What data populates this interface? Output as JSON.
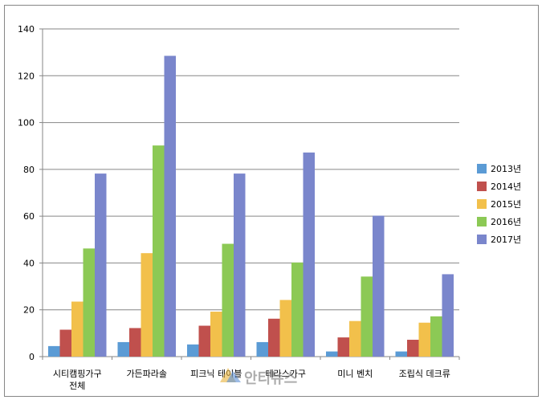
{
  "chart_data": {
    "type": "bar",
    "title": "",
    "xlabel": "",
    "ylabel": "",
    "ylim": [
      0,
      140
    ],
    "yticks": [
      0,
      20,
      40,
      60,
      80,
      100,
      120,
      140
    ],
    "grid": true,
    "legend_position": "right",
    "categories": [
      [
        "시티캠핑가구",
        "전체"
      ],
      [
        "가든파라솔"
      ],
      [
        "피크닉 테이블"
      ],
      [
        "테라스가구"
      ],
      [
        "미니 벤치"
      ],
      [
        "조립식 데크류"
      ]
    ],
    "series": [
      {
        "name": "2013년",
        "color": "#5B9BD5",
        "values": [
          4.5,
          6.2,
          5.2,
          6.2,
          2.2,
          2.2
        ]
      },
      {
        "name": "2014년",
        "color": "#C0504D",
        "values": [
          11.5,
          12.2,
          13.2,
          16.2,
          8.2,
          7.2
        ]
      },
      {
        "name": "2015년",
        "color": "#F2C04B",
        "values": [
          23.5,
          44.2,
          19.2,
          24.2,
          15.2,
          14.5
        ]
      },
      {
        "name": "2016년",
        "color": "#8CC955",
        "values": [
          46.2,
          90.2,
          48.2,
          40.2,
          34.2,
          17.2
        ]
      },
      {
        "name": "2017년",
        "color": "#7A86CC",
        "values": [
          78.2,
          128.5,
          78.2,
          87.2,
          60.2,
          35.2
        ]
      }
    ]
  },
  "watermark": {
    "logo_text": "안티뉴스"
  },
  "colors": {
    "gridline": "#868686",
    "axis": "#868686",
    "frame": "#868686"
  }
}
